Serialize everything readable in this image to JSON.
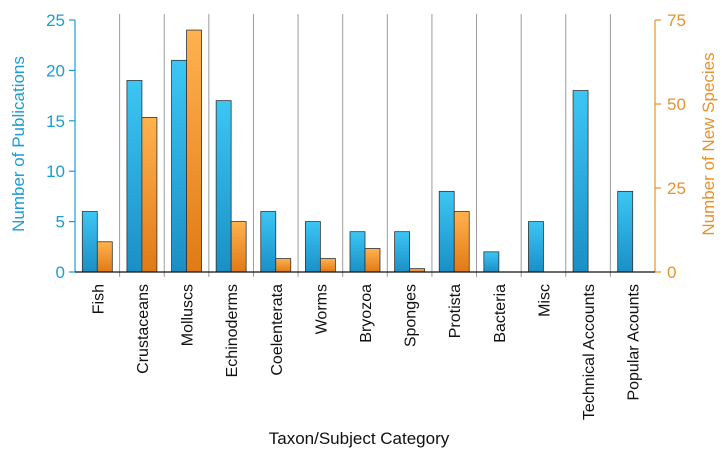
{
  "chart_data": {
    "type": "bar",
    "title": "",
    "xlabel": "Taxon/Subject Category",
    "ylabel_left": "Number of Publications",
    "ylabel_right": "Number of New Species",
    "ylim_left": [
      0,
      25
    ],
    "ylim_right": [
      0,
      75
    ],
    "yticks_left": [
      "0",
      "5",
      "10",
      "15",
      "20",
      "25"
    ],
    "yticks_right": [
      "0",
      "25",
      "50",
      "75"
    ],
    "categories": [
      "Fish",
      "Crustaceans",
      "Molluscs",
      "Echinoderms",
      "Coelenterata",
      "Worms",
      "Bryozoa",
      "Sponges",
      "Protista",
      "Bacteria",
      "Misc",
      "Technical Accounts",
      "Popular Acounts"
    ],
    "series": [
      {
        "axis": "left",
        "values": [
          6,
          19,
          21,
          17,
          6,
          5,
          4,
          4,
          8,
          2,
          5,
          18,
          8
        ]
      },
      {
        "axis": "right",
        "values": [
          9,
          46,
          72,
          15,
          4,
          4,
          7,
          1,
          18,
          null,
          null,
          null,
          null
        ]
      }
    ],
    "grid": "vertical-separators",
    "legend": "none",
    "colors": {
      "left_axis": "#1a9ed4",
      "right_axis": "#e8922a",
      "bar_left": "#29b6ec",
      "bar_right": "#f5a040",
      "bar_edge": "#333333",
      "separator": "#9a9a9a"
    }
  }
}
